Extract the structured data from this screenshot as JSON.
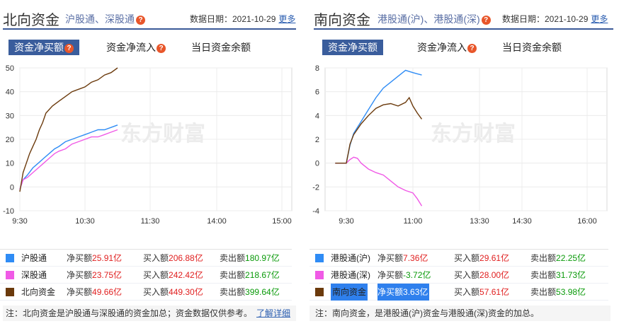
{
  "north": {
    "title": "北向资金",
    "subtitle": "沪股通、深股通",
    "date_label": "数据日期：2021-10-29",
    "more": "更多",
    "tabs": [
      "资金净买额",
      "资金净流入",
      "当日资金余额"
    ],
    "rows": [
      {
        "name": "沪股通",
        "color": "#2f8cf5",
        "net": "25.91亿",
        "buy": "206.88亿",
        "sell": "180.97亿"
      },
      {
        "name": "深股通",
        "color": "#f05ae6",
        "net": "23.75亿",
        "buy": "242.42亿",
        "sell": "218.67亿"
      },
      {
        "name": "北向资金",
        "color": "#6b3a0c",
        "net": "49.66亿",
        "buy": "449.30亿",
        "sell": "399.64亿"
      }
    ],
    "labels": {
      "net": "净买额",
      "buy": "买入额",
      "sell": "卖出额"
    },
    "note": "注：北向资金是沪股通与深股通的资金加总；资金数据仅供参考。",
    "note_link": "了解详细"
  },
  "south": {
    "title": "南向资金",
    "subtitle": "港股通(沪)、港股通(深)",
    "date_label": "数据日期：2021-10-29",
    "more": "更多",
    "tabs": [
      "资金净买额",
      "资金净流入",
      "当日资金余额"
    ],
    "rows": [
      {
        "name": "港股通(沪)",
        "color": "#2f8cf5",
        "net": "7.36亿",
        "buy": "29.61亿",
        "sell": "22.25亿"
      },
      {
        "name": "港股通(深)",
        "color": "#f05ae6",
        "net": "-3.72亿",
        "buy": "28.00亿",
        "sell": "31.73亿"
      },
      {
        "name": "南向资金",
        "color": "#6b3a0c",
        "net": "3.63亿",
        "buy": "57.61亿",
        "sell": "53.98亿"
      }
    ],
    "labels": {
      "net": "净买额",
      "buy": "买入额",
      "sell": "卖出额"
    },
    "note": "注：南向资金，是港股通(沪)资金与港股通(深)资金的加总。"
  },
  "watermark": "东方财富",
  "chart_data": [
    {
      "type": "line",
      "x_ticks": [
        "9:30",
        "10:30",
        "11:30",
        "14:00",
        "15:00"
      ],
      "ylim": [
        -10,
        50
      ],
      "y_ticks": [
        -10,
        0,
        10,
        20,
        30,
        40,
        50
      ],
      "grid": true,
      "series": [
        {
          "name": "沪股通",
          "color": "#2f8cf5",
          "points": [
            [
              0,
              -1
            ],
            [
              3,
              3
            ],
            [
              7,
              5
            ],
            [
              12,
              8
            ],
            [
              17,
              10
            ],
            [
              22,
              12
            ],
            [
              27,
              14
            ],
            [
              32,
              16
            ],
            [
              36,
              17
            ],
            [
              42,
              19
            ],
            [
              48,
              20
            ],
            [
              54,
              21
            ],
            [
              60,
              22
            ],
            [
              66,
              23
            ],
            [
              72,
              24
            ],
            [
              78,
              24
            ],
            [
              84,
              25
            ],
            [
              90,
              26
            ]
          ]
        },
        {
          "name": "深股通",
          "color": "#f05ae6",
          "points": [
            [
              0,
              -1
            ],
            [
              3,
              3
            ],
            [
              7,
              4
            ],
            [
              12,
              6
            ],
            [
              17,
              8
            ],
            [
              22,
              10
            ],
            [
              27,
              12
            ],
            [
              32,
              14
            ],
            [
              36,
              15
            ],
            [
              42,
              16
            ],
            [
              48,
              18
            ],
            [
              54,
              19
            ],
            [
              60,
              20
            ],
            [
              66,
              21
            ],
            [
              72,
              21
            ],
            [
              78,
              22
            ],
            [
              84,
              23
            ],
            [
              90,
              24
            ]
          ]
        },
        {
          "name": "北向资金",
          "color": "#6b3a0c",
          "points": [
            [
              0,
              -2
            ],
            [
              3,
              6
            ],
            [
              6,
              10
            ],
            [
              9,
              14
            ],
            [
              12,
              17
            ],
            [
              15,
              20
            ],
            [
              18,
              24
            ],
            [
              21,
              27
            ],
            [
              24,
              31
            ],
            [
              30,
              34
            ],
            [
              36,
              36
            ],
            [
              42,
              38
            ],
            [
              48,
              40
            ],
            [
              54,
              41
            ],
            [
              60,
              42
            ],
            [
              66,
              44
            ],
            [
              72,
              45
            ],
            [
              78,
              47
            ],
            [
              84,
              48
            ],
            [
              90,
              50
            ]
          ]
        }
      ]
    },
    {
      "type": "line",
      "x_ticks": [
        "9:30",
        "11:00",
        "13:30",
        "14:30",
        "16:00"
      ],
      "ylim": [
        -4,
        8
      ],
      "y_ticks": [
        -4,
        -2,
        0,
        2,
        4,
        6,
        8
      ],
      "grid": true,
      "series": [
        {
          "name": "港股通(沪)",
          "color": "#2f8cf5",
          "points": [
            [
              -15,
              0
            ],
            [
              0,
              0
            ],
            [
              5,
              1.5
            ],
            [
              10,
              2.5
            ],
            [
              20,
              3.5
            ],
            [
              30,
              4.5
            ],
            [
              40,
              5.5
            ],
            [
              50,
              6.3
            ],
            [
              60,
              6.8
            ],
            [
              70,
              7.3
            ],
            [
              80,
              7.8
            ],
            [
              90,
              7.6
            ],
            [
              100,
              7.5
            ],
            [
              110,
              7.4
            ]
          ]
        },
        {
          "name": "港股通(深)",
          "color": "#f05ae6",
          "points": [
            [
              -15,
              0
            ],
            [
              0,
              0
            ],
            [
              5,
              0.3
            ],
            [
              10,
              0.5
            ],
            [
              15,
              0.4
            ],
            [
              20,
              0
            ],
            [
              30,
              -0.5
            ],
            [
              40,
              -0.8
            ],
            [
              50,
              -1.0
            ],
            [
              60,
              -1.5
            ],
            [
              70,
              -2.0
            ],
            [
              80,
              -2.3
            ],
            [
              90,
              -2.5
            ],
            [
              100,
              -3.0
            ],
            [
              110,
              -3.6
            ]
          ]
        },
        {
          "name": "南向资金",
          "color": "#6b3a0c",
          "points": [
            [
              -15,
              0
            ],
            [
              0,
              0
            ],
            [
              5,
              1.6
            ],
            [
              10,
              2.4
            ],
            [
              20,
              3.3
            ],
            [
              30,
              4.0
            ],
            [
              40,
              4.6
            ],
            [
              50,
              4.9
            ],
            [
              60,
              5.0
            ],
            [
              70,
              4.8
            ],
            [
              80,
              5.1
            ],
            [
              85,
              5.5
            ],
            [
              90,
              4.8
            ],
            [
              100,
              4.2
            ],
            [
              110,
              3.7
            ]
          ]
        }
      ]
    }
  ]
}
